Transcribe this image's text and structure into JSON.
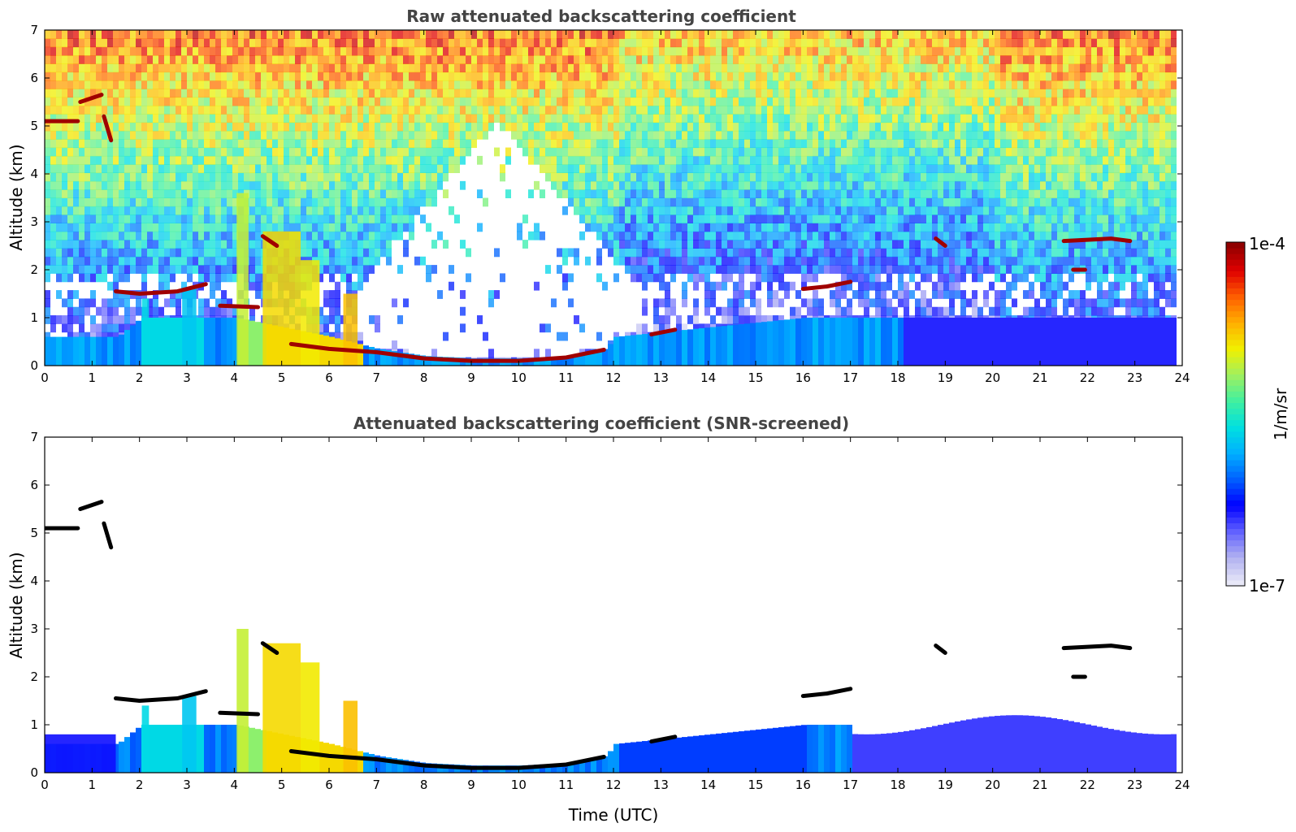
{
  "chart_data": [
    {
      "type": "heatmap",
      "title": "Raw attenuated backscattering coefficient",
      "xlabel": "",
      "ylabel": "Altitude (km)",
      "xlim": [
        0,
        24
      ],
      "ylim": [
        0,
        7
      ],
      "x_ticks": [
        "0",
        "1",
        "2",
        "3",
        "4",
        "5",
        "6",
        "7",
        "8",
        "9",
        "10",
        "11",
        "12",
        "13",
        "14",
        "15",
        "16",
        "17",
        "18",
        "19",
        "20",
        "21",
        "22",
        "23",
        "24"
      ],
      "y_ticks": [
        "0",
        "1",
        "2",
        "3",
        "4",
        "5",
        "6",
        "7"
      ],
      "layers": {
        "boundary_layer_top_km": [
          [
            0,
            0.6
          ],
          [
            1.5,
            0.6
          ],
          [
            2,
            1.0
          ],
          [
            4,
            1.0
          ],
          [
            6,
            0.6
          ],
          [
            7,
            0.35
          ],
          [
            8,
            0.2
          ],
          [
            9,
            0.15
          ],
          [
            10,
            0.15
          ],
          [
            11,
            0.2
          ],
          [
            11.8,
            0.35
          ],
          [
            12,
            0.6
          ],
          [
            14,
            0.8
          ],
          [
            16,
            1.0
          ],
          [
            18,
            1.0
          ],
          [
            20,
            1.0
          ],
          [
            22,
            1.0
          ],
          [
            23.8,
            1.0
          ]
        ],
        "cloud_segments": [
          {
            "t": [
              0.0,
              0.7
            ],
            "z": 5.1
          },
          {
            "t": [
              0.7,
              1.2
            ],
            "z": 5.6
          },
          {
            "t": [
              1.5,
              2.8
            ],
            "z": 1.5
          },
          {
            "t": [
              2.8,
              3.5
            ],
            "z": 1.7
          },
          {
            "t": [
              3.7,
              4.5
            ],
            "z": 1.25
          },
          {
            "t": [
              4.6,
              5.2
            ],
            "z": 2.6
          },
          {
            "t": [
              5.2,
              11.8
            ],
            "z": "descending 0.45→0.1→0.35"
          },
          {
            "t": [
              16.0,
              17.0
            ],
            "z": 1.65
          },
          {
            "t": [
              18.8,
              19.0
            ],
            "z": 2.6
          },
          {
            "t": [
              21.5,
              22.8
            ],
            "z": 2.6
          },
          {
            "t": [
              21.7,
              21.9
            ],
            "z": 2.0
          }
        ]
      }
    },
    {
      "type": "heatmap",
      "title": "Attenuated backscattering coefficient (SNR-screened)",
      "xlabel": "Time (UTC)",
      "ylabel": "Altitude (km)",
      "xlim": [
        0,
        24
      ],
      "ylim": [
        0,
        7
      ],
      "x_ticks": [
        "0",
        "1",
        "2",
        "3",
        "4",
        "5",
        "6",
        "7",
        "8",
        "9",
        "10",
        "11",
        "12",
        "13",
        "14",
        "15",
        "16",
        "17",
        "18",
        "19",
        "20",
        "21",
        "22",
        "23",
        "24"
      ],
      "y_ticks": [
        "0",
        "1",
        "2",
        "3",
        "4",
        "5",
        "6",
        "7"
      ]
    }
  ],
  "colorbar": {
    "label": "1/m/sr",
    "max_label": "1e-4",
    "min_label": "1e-7",
    "colors": [
      "#e8e8f8",
      "#b0b0f0",
      "#6060ff",
      "#0000ff",
      "#0060ff",
      "#00b0ff",
      "#00e0e0",
      "#40f0a0",
      "#a0f060",
      "#f0f000",
      "#ffb000",
      "#ff6000",
      "#e00000",
      "#900000"
    ]
  }
}
